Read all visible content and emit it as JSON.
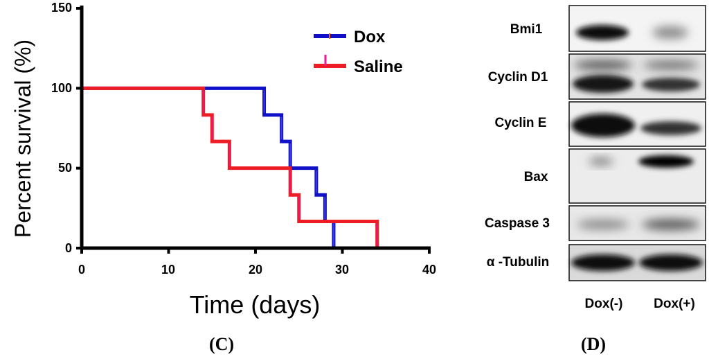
{
  "chart_data": [
    {
      "type": "line",
      "subtype": "kaplan-meier-step",
      "panel_label": "(C)",
      "xlabel": "Time (days)",
      "ylabel": "Percent survival (%)",
      "xlim": [
        0,
        40
      ],
      "ylim": [
        0,
        150
      ],
      "x_ticks": [
        "0",
        "10",
        "20",
        "30",
        "40"
      ],
      "y_ticks": [
        "0",
        "50",
        "100",
        "150"
      ],
      "legend_position": "top-right",
      "series": [
        {
          "name": "Dox",
          "color": "#1010c8",
          "steps": [
            [
              0,
              100
            ],
            [
              21,
              83.3
            ],
            [
              23,
              66.7
            ],
            [
              24,
              50
            ],
            [
              27,
              33.3
            ],
            [
              28,
              16.7
            ],
            [
              29,
              0
            ]
          ]
        },
        {
          "name": "Saline",
          "color": "#ee1c24",
          "steps": [
            [
              0,
              100
            ],
            [
              14,
              83.3
            ],
            [
              15,
              66.7
            ],
            [
              17,
              50
            ],
            [
              24,
              33.3
            ],
            [
              25,
              16.7
            ],
            [
              34,
              0
            ]
          ]
        }
      ]
    },
    {
      "type": "western-blot",
      "panel_label": "(D)",
      "proteins": [
        "Bmi1",
        "Cyclin D1",
        "Cyclin E",
        "Bax",
        "Caspase 3",
        "α -Tubulin"
      ],
      "lanes": [
        "Dox(-)",
        "Dox(+)"
      ]
    }
  ]
}
